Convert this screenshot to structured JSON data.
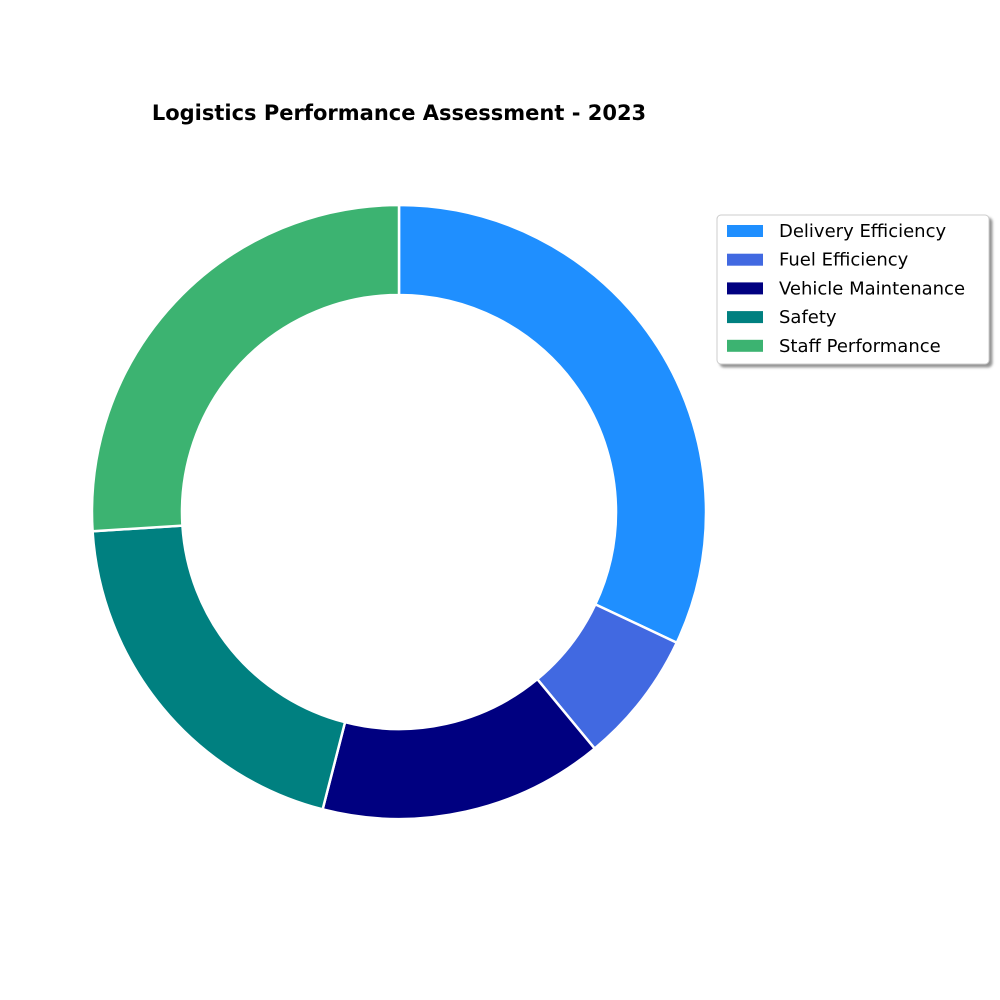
{
  "chart_data": {
    "type": "pie",
    "variant": "donut",
    "title": "Logistics Performance Assessment - 2023",
    "categories": [
      "Delivery Efficiency",
      "Fuel Efficiency",
      "Vehicle Maintenance",
      "Safety",
      "Staff Performance"
    ],
    "values": [
      32,
      7,
      15,
      20,
      26
    ],
    "colors": [
      "#1f8fff",
      "#4169e1",
      "#000080",
      "#008080",
      "#3cb371"
    ],
    "start_angle": "top",
    "direction": "clockwise",
    "legend": {
      "placement": "upper-right",
      "entries": [
        "Delivery Efficiency",
        "Fuel Efficiency",
        "Vehicle Maintenance",
        "Safety",
        "Staff Performance"
      ]
    },
    "wedge_edge_color": "#ffffff"
  }
}
